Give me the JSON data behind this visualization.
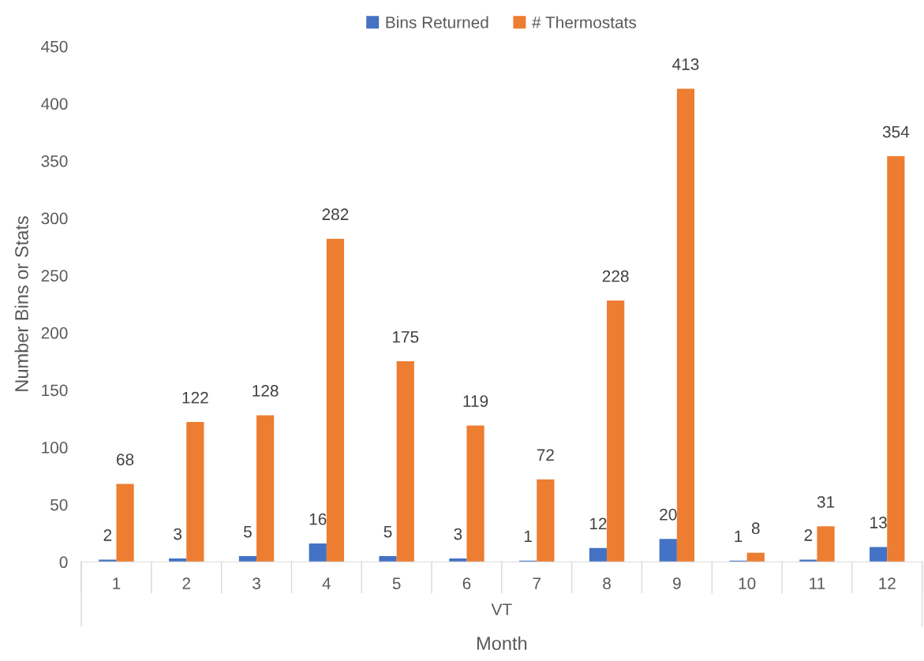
{
  "chart_data": {
    "type": "bar",
    "xlabel": "Month",
    "ylabel": "Number Bins or Stats",
    "categories": [
      "1",
      "2",
      "3",
      "4",
      "5",
      "6",
      "7",
      "8",
      "9",
      "10",
      "11",
      "12"
    ],
    "series": [
      {
        "name": "Bins Returned",
        "color": "#4472c4",
        "values": [
          2,
          3,
          5,
          16,
          5,
          3,
          1,
          12,
          20,
          1,
          2,
          13
        ]
      },
      {
        "name": "# Thermostats",
        "color": "#ed7d31",
        "values": [
          68,
          122,
          128,
          282,
          175,
          119,
          72,
          228,
          413,
          8,
          31,
          354
        ]
      }
    ],
    "annotations": [
      "VT"
    ],
    "ylim": [
      0,
      450
    ],
    "yticks": [
      0,
      50,
      100,
      150,
      200,
      250,
      300,
      350,
      400,
      450
    ],
    "data_labels": true,
    "legend": "top",
    "grid": false
  }
}
